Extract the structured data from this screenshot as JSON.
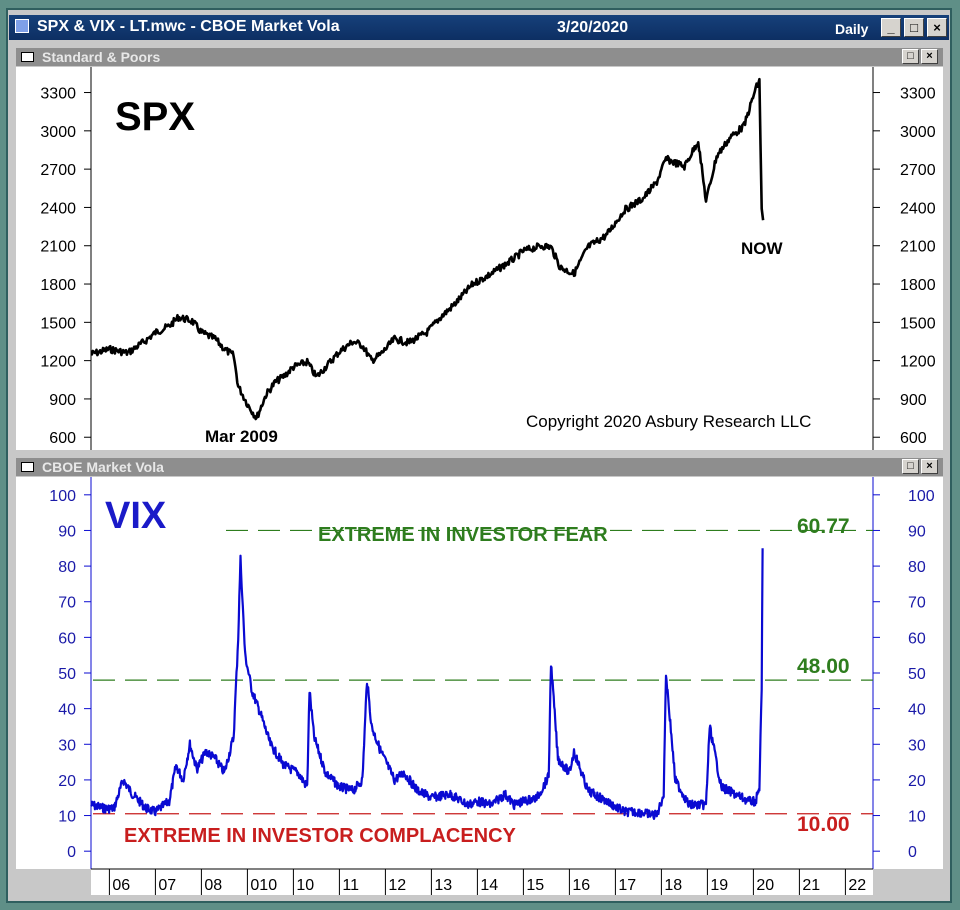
{
  "window": {
    "title": "SPX & VIX - LT.mwc - CBOE Market Vola",
    "date": "3/20/2020",
    "period": "Daily",
    "minimize": "_",
    "maximize": "□",
    "close": "×"
  },
  "panels": {
    "top_title": "Standard & Poors",
    "bottom_title": "CBOE Market Vola",
    "restore": "□",
    "close": "×"
  },
  "chart_data": [
    {
      "type": "line",
      "title": "SPX",
      "series": [
        {
          "x": [
            2005.6,
            2006.0,
            2006.4,
            2006.8,
            2007.0,
            2007.3,
            2007.5,
            2007.8,
            2008.0,
            2008.3,
            2008.5,
            2008.7,
            2008.8,
            2009.0,
            2009.2,
            2009.4,
            2009.6,
            2009.8,
            2010.0,
            2010.3,
            2010.5,
            2010.7,
            2011.0,
            2011.3,
            2011.5,
            2011.7,
            2011.9,
            2012.2,
            2012.5,
            2012.9,
            2013.2,
            2013.5,
            2013.9,
            2014.3,
            2014.8,
            2015.0,
            2015.4,
            2015.6,
            2015.8,
            2016.1,
            2016.4,
            2016.8,
            2017.2,
            2017.6,
            2017.9,
            2018.1,
            2018.5,
            2018.8,
            2018.97,
            2019.2,
            2019.5,
            2019.8,
            2020.05,
            2020.13,
            2020.18,
            2020.21
          ],
          "values": [
            1250,
            1290,
            1260,
            1360,
            1420,
            1470,
            1540,
            1510,
            1420,
            1370,
            1290,
            1240,
            1000,
            860,
            750,
            930,
            1030,
            1080,
            1150,
            1190,
            1070,
            1150,
            1270,
            1350,
            1320,
            1200,
            1250,
            1370,
            1340,
            1420,
            1540,
            1640,
            1800,
            1880,
            2000,
            2060,
            2100,
            2090,
            1930,
            1880,
            2090,
            2180,
            2380,
            2470,
            2600,
            2780,
            2720,
            2920,
            2450,
            2800,
            2950,
            3040,
            3330,
            3390,
            2400,
            2300
          ]
        }
      ],
      "ylim": [
        500,
        3500
      ],
      "yticks": [
        600,
        900,
        1200,
        1500,
        1800,
        2100,
        2400,
        2700,
        3000,
        3300
      ],
      "annotations": {
        "low_label": "Mar 2009",
        "now_label": "NOW",
        "copyright": "Copyright 2020 Asbury Research LLC"
      }
    },
    {
      "type": "line",
      "title": "VIX",
      "series": [
        {
          "x": [
            2005.6,
            2005.9,
            2006.1,
            2006.3,
            2006.5,
            2006.8,
            2007.0,
            2007.3,
            2007.45,
            2007.6,
            2007.75,
            2007.9,
            2008.1,
            2008.3,
            2008.5,
            2008.7,
            2008.8,
            2008.85,
            2008.95,
            2009.1,
            2009.3,
            2009.5,
            2009.8,
            2010.1,
            2010.3,
            2010.35,
            2010.45,
            2010.7,
            2011.0,
            2011.3,
            2011.5,
            2011.6,
            2011.7,
            2011.9,
            2012.2,
            2012.4,
            2012.7,
            2013.0,
            2013.4,
            2013.8,
            2014.0,
            2014.3,
            2014.6,
            2014.8,
            2015.0,
            2015.3,
            2015.55,
            2015.6,
            2015.75,
            2016.0,
            2016.1,
            2016.4,
            2016.8,
            2017.2,
            2017.5,
            2017.9,
            2018.05,
            2018.1,
            2018.3,
            2018.6,
            2018.97,
            2019.05,
            2019.3,
            2019.6,
            2019.9,
            2020.05,
            2020.13,
            2020.18,
            2020.2
          ],
          "values": [
            13,
            12,
            12,
            20,
            16,
            12,
            11,
            14,
            24,
            20,
            30,
            23,
            28,
            26,
            22,
            32,
            60,
            82,
            55,
            45,
            38,
            30,
            24,
            22,
            18,
            45,
            32,
            22,
            18,
            17,
            20,
            48,
            35,
            28,
            20,
            22,
            17,
            15,
            16,
            13,
            14,
            13,
            16,
            13,
            14,
            15,
            21,
            53,
            26,
            22,
            28,
            17,
            14,
            11,
            11,
            10,
            16,
            50,
            20,
            13,
            13,
            35,
            18,
            16,
            14,
            14,
            18,
            45,
            85
          ]
        }
      ],
      "ylim": [
        -5,
        105
      ],
      "yticks": [
        0,
        10,
        20,
        30,
        40,
        50,
        60,
        70,
        80,
        90,
        100
      ],
      "xlabels": [
        "06",
        "07",
        "08",
        "010",
        "10",
        "11",
        "12",
        "13",
        "14",
        "15",
        "16",
        "17",
        "18",
        "19",
        "20",
        "21",
        "22"
      ],
      "reference_lines": [
        {
          "label": "EXTREME IN INVESTOR FEAR",
          "value_label": "60.77"
        },
        {
          "value_label": "48.00"
        },
        {
          "label": "EXTREME IN INVESTOR COMPLACENCY",
          "value_label": "10.00"
        }
      ]
    }
  ],
  "colors": {
    "spx_line": "#000000",
    "vix_line": "#0a0ad2",
    "fear_text": "#2e7d1e",
    "complacency_text": "#c81e1e",
    "axis_text": "#1a1aa8"
  }
}
